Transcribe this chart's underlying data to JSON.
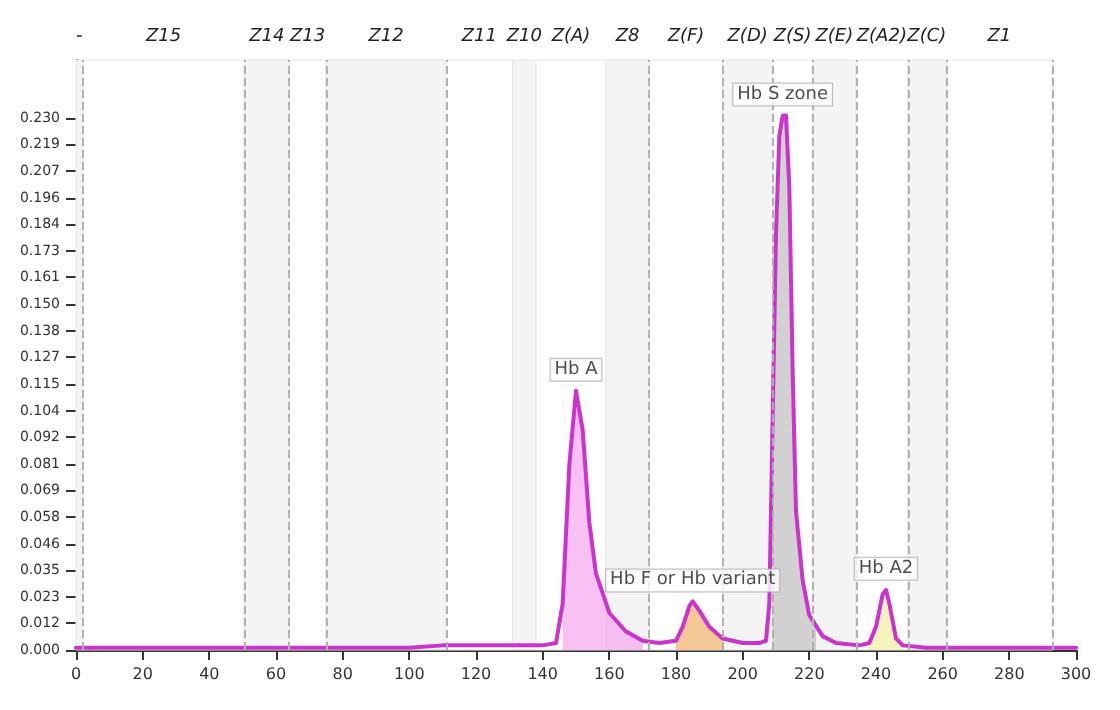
{
  "chart_data": {
    "type": "line",
    "marker": "none",
    "line_style": "solid",
    "grid": false,
    "xlim": [
      0,
      300
    ],
    "xticks": [
      0,
      20,
      40,
      60,
      80,
      100,
      120,
      140,
      160,
      180,
      200,
      220,
      240,
      260,
      280,
      300
    ],
    "ylim": [
      0,
      0.255
    ],
    "yticks": [
      {
        "value": 0,
        "label": "0.000"
      },
      {
        "value": 0.0115,
        "label": "0.012"
      },
      {
        "value": 0.023,
        "label": "0.023"
      },
      {
        "value": 0.0345,
        "label": "0.035"
      },
      {
        "value": 0.046,
        "label": "0.046"
      },
      {
        "value": 0.0575,
        "label": "0.058"
      },
      {
        "value": 0.069,
        "label": "0.069"
      },
      {
        "value": 0.0805,
        "label": "0.081"
      },
      {
        "value": 0.092,
        "label": "0.092"
      },
      {
        "value": 0.1035,
        "label": "0.104"
      },
      {
        "value": 0.115,
        "label": "0.115"
      },
      {
        "value": 0.1265,
        "label": "0.127"
      },
      {
        "value": 0.138,
        "label": "0.138"
      },
      {
        "value": 0.1495,
        "label": "0.150"
      },
      {
        "value": 0.161,
        "label": "0.161"
      },
      {
        "value": 0.1725,
        "label": "0.173"
      },
      {
        "value": 0.184,
        "label": "0.184"
      },
      {
        "value": 0.1955,
        "label": "0.196"
      },
      {
        "value": 0.207,
        "label": "0.207"
      },
      {
        "value": 0.2185,
        "label": "0.219"
      },
      {
        "value": 0.23,
        "label": "0.230"
      }
    ],
    "series": [
      {
        "color": "#cc33cc",
        "x": [
          0,
          50,
          100,
          110,
          115,
          140,
          144,
          146,
          148,
          150,
          152,
          154,
          156,
          160,
          165,
          170,
          175,
          180,
          182,
          184,
          185,
          187,
          190,
          194,
          200,
          205,
          207,
          208,
          209,
          210,
          211,
          212,
          213,
          214,
          215,
          216,
          218,
          220,
          224,
          228,
          235,
          238,
          240,
          242,
          243,
          244,
          246,
          248,
          255,
          270,
          300
        ],
        "values": [
          0.001,
          0.001,
          0.001,
          0.002,
          0.002,
          0.002,
          0.003,
          0.02,
          0.08,
          0.112,
          0.095,
          0.055,
          0.033,
          0.016,
          0.008,
          0.004,
          0.003,
          0.004,
          0.01,
          0.019,
          0.021,
          0.017,
          0.01,
          0.005,
          0.003,
          0.003,
          0.004,
          0.02,
          0.1,
          0.18,
          0.222,
          0.231,
          0.231,
          0.2,
          0.12,
          0.06,
          0.03,
          0.015,
          0.006,
          0.003,
          0.002,
          0.003,
          0.01,
          0.024,
          0.026,
          0.02,
          0.005,
          0.002,
          0.001,
          0.001,
          0.001
        ]
      },
      {
        "type": "area",
        "color": "#f3a6f0",
        "x": [
          146,
          148,
          150,
          152,
          154,
          156,
          160,
          165,
          170
        ],
        "values": [
          0.02,
          0.08,
          0.112,
          0.095,
          0.055,
          0.033,
          0.016,
          0.008,
          0.004
        ]
      },
      {
        "type": "area",
        "color": "#f2b06a",
        "x": [
          180,
          182,
          184,
          185,
          187,
          190,
          194
        ],
        "values": [
          0.004,
          0.01,
          0.019,
          0.021,
          0.017,
          0.01,
          0.005
        ]
      },
      {
        "type": "area",
        "color": "#bdbdbd",
        "x": [
          209,
          210,
          211,
          212,
          213,
          214,
          215,
          216,
          218,
          220,
          222
        ],
        "values": [
          0.1,
          0.18,
          0.222,
          0.231,
          0.231,
          0.2,
          0.12,
          0.06,
          0.03,
          0.015,
          0.01
        ]
      },
      {
        "type": "area",
        "color": "#f3eea0",
        "x": [
          238,
          240,
          242,
          243,
          244,
          246,
          248
        ],
        "values": [
          0.003,
          0.01,
          0.024,
          0.026,
          0.02,
          0.005,
          0.002
        ]
      }
    ],
    "bands": [
      {
        "axis": "x",
        "from": 0,
        "to": 2,
        "label": "-",
        "color": "#f4f4f4"
      },
      {
        "axis": "x",
        "from": 2,
        "to": 50.5,
        "label": "Z15",
        "color": "#ffffff"
      },
      {
        "axis": "x",
        "from": 50.5,
        "to": 64,
        "label": "Z14",
        "color": "#f4f4f4"
      },
      {
        "axis": "x",
        "from": 64,
        "to": 75,
        "label": "Z13",
        "color": "#ffffff"
      },
      {
        "axis": "x",
        "from": 75,
        "to": 111,
        "label": "Z12",
        "color": "#f4f4f4"
      },
      {
        "axis": "x",
        "from": 111,
        "to": 131,
        "label": "Z11",
        "color": "#ffffff"
      },
      {
        "axis": "x",
        "from": 131,
        "to": 138,
        "label": "Z10",
        "color": "#f4f4f4"
      },
      {
        "axis": "x",
        "from": 138,
        "to": 159,
        "label": "Z(A)",
        "color": "#ffffff"
      },
      {
        "axis": "x",
        "from": 159,
        "to": 172,
        "label": "Z8",
        "color": "#f4f4f4"
      },
      {
        "axis": "x",
        "from": 172,
        "to": 194,
        "label": "Z(F)",
        "color": "#ffffff"
      },
      {
        "axis": "x",
        "from": 194,
        "to": 209,
        "label": "Z(D)",
        "color": "#f4f4f4"
      },
      {
        "axis": "x",
        "from": 209,
        "to": 221,
        "label": "Z(S)",
        "color": "#ffffff"
      },
      {
        "axis": "x",
        "from": 221,
        "to": 234,
        "label": "Z(E)",
        "color": "#f4f4f4"
      },
      {
        "axis": "x",
        "from": 234,
        "to": 249.5,
        "label": "Z(A2)",
        "color": "#ffffff"
      },
      {
        "axis": "x",
        "from": 249.5,
        "to": 261,
        "label": "Z(C)",
        "color": "#f4f4f4"
      },
      {
        "axis": "x",
        "from": 261,
        "to": 293,
        "label": "Z1",
        "color": "#ffffff"
      }
    ],
    "ref_lines": [
      {
        "axis": "x",
        "value": 2,
        "line_style": "dashed",
        "color": "#b0b0b0"
      },
      {
        "axis": "x",
        "value": 50.5,
        "line_style": "dashed",
        "color": "#b0b0b0"
      },
      {
        "axis": "x",
        "value": 64,
        "line_style": "dashed",
        "color": "#b0b0b0"
      },
      {
        "axis": "x",
        "value": 75,
        "line_style": "dashed",
        "color": "#b0b0b0"
      },
      {
        "axis": "x",
        "value": 111,
        "line_style": "dashed",
        "color": "#b0b0b0"
      },
      {
        "axis": "x",
        "value": 172,
        "line_style": "dashed",
        "color": "#b0b0b0"
      },
      {
        "axis": "x",
        "value": 194,
        "line_style": "dashed",
        "color": "#b0b0b0"
      },
      {
        "axis": "x",
        "value": 209,
        "line_style": "dashed",
        "color": "#b0b0b0"
      },
      {
        "axis": "x",
        "value": 221,
        "line_style": "dashed",
        "color": "#b0b0b0"
      },
      {
        "axis": "x",
        "value": 234,
        "line_style": "dashed",
        "color": "#b0b0b0"
      },
      {
        "axis": "x",
        "value": 249.5,
        "line_style": "dashed",
        "color": "#b0b0b0"
      },
      {
        "axis": "x",
        "value": 261,
        "line_style": "dashed",
        "color": "#b0b0b0"
      },
      {
        "axis": "x",
        "value": 293,
        "line_style": "dashed",
        "color": "#b0b0b0"
      }
    ],
    "annotations": [
      {
        "text": "Hb A",
        "x": 150,
        "y": 0.112
      },
      {
        "text": "Hb F or Hb variant",
        "x": 185,
        "y": 0.021
      },
      {
        "text": "Hb S zone",
        "x": 212,
        "y": 0.231
      },
      {
        "text": "Hb A2",
        "x": 243,
        "y": 0.026
      }
    ]
  }
}
